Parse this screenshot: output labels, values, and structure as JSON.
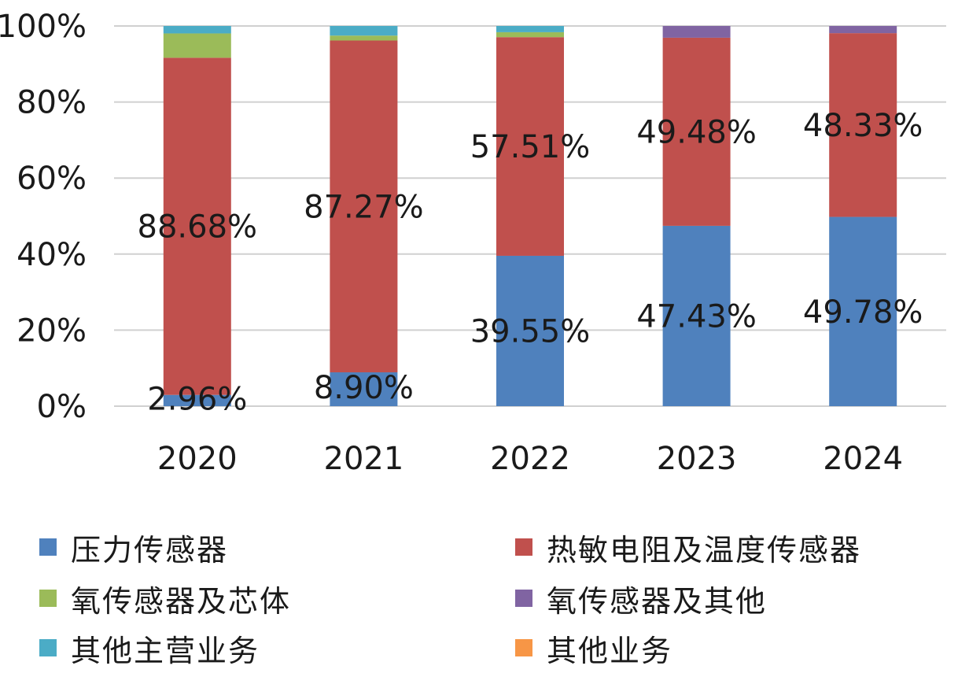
{
  "chart_data": {
    "type": "bar",
    "stacked": true,
    "categories": [
      "2020",
      "2021",
      "2022",
      "2023",
      "2024"
    ],
    "y_ticks": [
      "0%",
      "20%",
      "40%",
      "60%",
      "80%",
      "100%"
    ],
    "ylim": [
      0,
      100
    ],
    "grid": true,
    "legend_position": "bottom",
    "series": [
      {
        "name": "压力传感器",
        "color": "#4f81bd",
        "values": [
          2.96,
          8.9,
          39.55,
          47.43,
          49.78
        ],
        "labels": [
          "2.96%",
          "8.90%",
          "39.55%",
          "47.43%",
          "49.78%"
        ]
      },
      {
        "name": "热敏电阻及温度传感器",
        "color": "#c0504d",
        "values": [
          88.68,
          87.27,
          57.51,
          49.48,
          48.33
        ],
        "labels": [
          "88.68%",
          "87.27%",
          "57.51%",
          "49.48%",
          "48.33%"
        ]
      },
      {
        "name": "氧传感器及芯体",
        "color": "#9bbb59",
        "values": [
          6.4,
          1.3,
          1.3,
          0.0,
          0.0
        ]
      },
      {
        "name": "氧传感器及其他",
        "color": "#8064a2",
        "values": [
          0.0,
          0.0,
          0.0,
          3.09,
          1.89
        ]
      },
      {
        "name": "其他主营业务",
        "color": "#4bacc6",
        "values": [
          1.96,
          2.53,
          1.64,
          0.0,
          0.0
        ]
      },
      {
        "name": "其他业务",
        "color": "#f79646",
        "values": [
          0.0,
          0.0,
          0.0,
          0.0,
          0.0
        ]
      }
    ]
  }
}
